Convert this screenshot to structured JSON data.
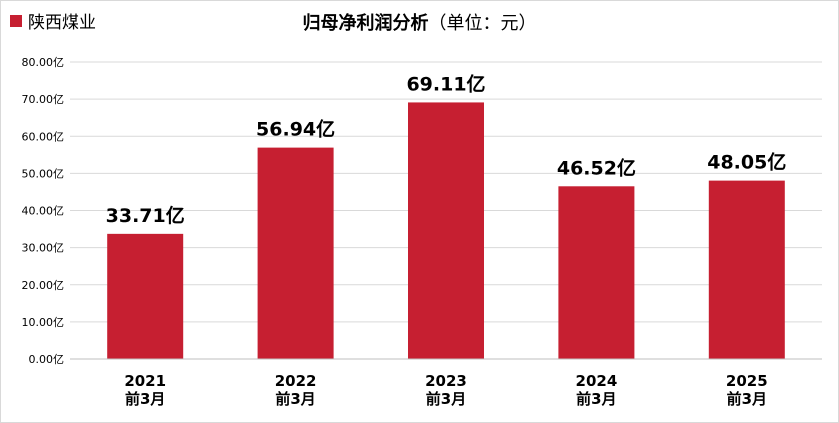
{
  "chart_data": {
    "type": "bar",
    "title": "归母净利润分析",
    "subtitle": "（单位：元）",
    "legend": [
      "陕西煤业"
    ],
    "series": [
      {
        "name": "陕西煤业",
        "color": "#c61f31",
        "values": [
          33.71,
          56.94,
          69.11,
          46.52,
          48.05
        ],
        "data_labels": [
          "33.71亿",
          "56.94亿",
          "69.11亿",
          "46.52亿",
          "48.05亿"
        ]
      }
    ],
    "categories": [
      {
        "year": "2021",
        "period": "前3月"
      },
      {
        "year": "2022",
        "period": "前3月"
      },
      {
        "year": "2023",
        "period": "前3月"
      },
      {
        "year": "2024",
        "period": "前3月"
      },
      {
        "year": "2025",
        "period": "前3月"
      }
    ],
    "ylim": [
      0,
      80
    ],
    "yticks": [
      0,
      10,
      20,
      30,
      40,
      50,
      60,
      70,
      80
    ],
    "ytick_labels": [
      "0.00亿",
      "10.00亿",
      "20.00亿",
      "30.00亿",
      "40.00亿",
      "50.00亿",
      "60.00亿",
      "70.00亿",
      "80.00亿"
    ],
    "grid": true,
    "legend_position": "top-left"
  }
}
